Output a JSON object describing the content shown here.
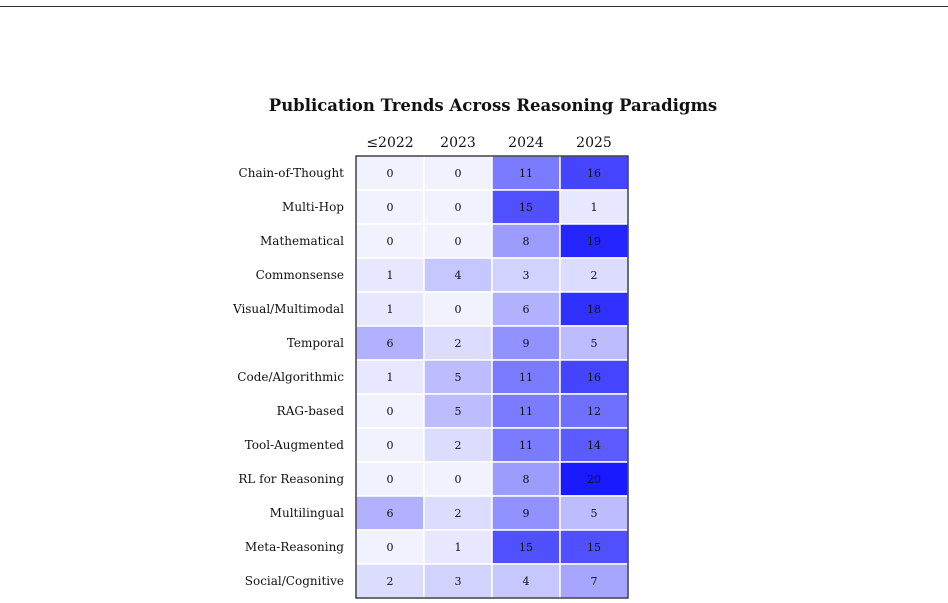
{
  "chart_data": {
    "type": "heatmap",
    "title": "Publication Trends Across Reasoning Paradigms",
    "columns": [
      "≤2022",
      "2023",
      "2024",
      "2025"
    ],
    "rows": [
      "Chain-of-Thought",
      "Multi-Hop",
      "Mathematical",
      "Commonsense",
      "Visual/Multimodal",
      "Temporal",
      "Code/Algorithmic",
      "RAG-based",
      "Tool-Augmented",
      "RL for Reasoning",
      "Multilingual",
      "Meta-Reasoning",
      "Social/Cognitive"
    ],
    "values": [
      [
        0,
        0,
        11,
        16
      ],
      [
        0,
        0,
        15,
        1
      ],
      [
        0,
        0,
        8,
        19
      ],
      [
        1,
        4,
        3,
        2
      ],
      [
        1,
        0,
        6,
        18
      ],
      [
        6,
        2,
        9,
        5
      ],
      [
        1,
        5,
        11,
        16
      ],
      [
        0,
        5,
        11,
        12
      ],
      [
        0,
        2,
        11,
        14
      ],
      [
        0,
        0,
        8,
        20
      ],
      [
        6,
        2,
        9,
        5
      ],
      [
        0,
        1,
        15,
        15
      ],
      [
        2,
        3,
        4,
        7
      ]
    ],
    "colormap": {
      "low": "#f2f2ff",
      "high": "#1a1aff",
      "vmin": 0,
      "vmax": 20
    }
  }
}
